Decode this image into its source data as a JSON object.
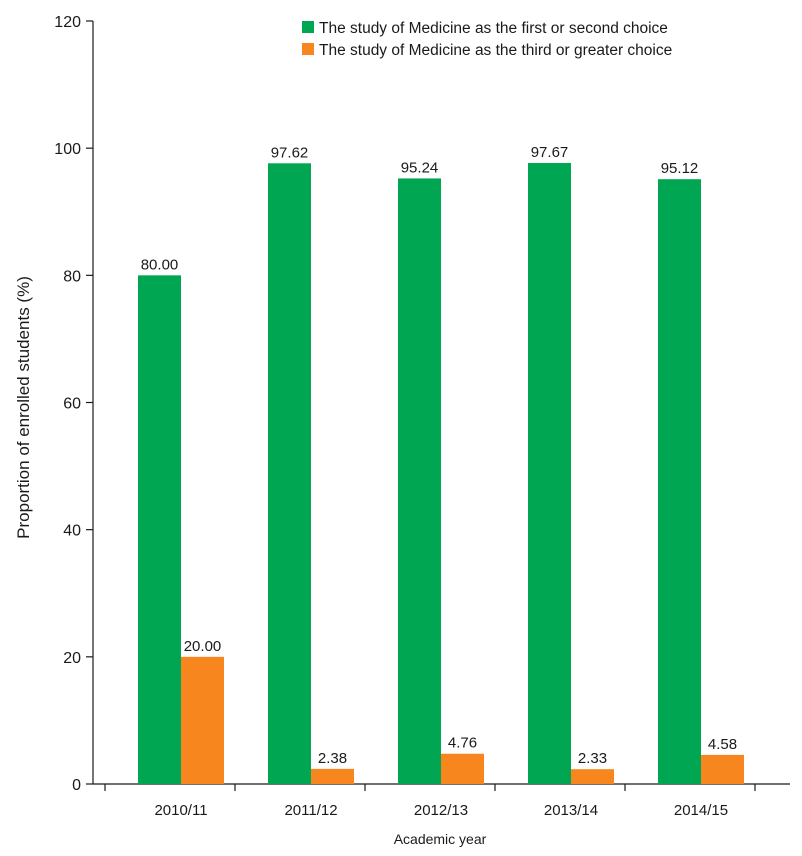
{
  "chart_data": {
    "type": "bar",
    "categories": [
      "2010/11",
      "2011/12",
      "2012/13",
      "2013/14",
      "2014/15"
    ],
    "series": [
      {
        "name": "The study of Medicine as the first or second choice",
        "values": [
          80.0,
          97.62,
          95.24,
          97.67,
          95.12
        ],
        "labels": [
          "80.00",
          "97.62",
          "95.24",
          "97.67",
          "95.12"
        ],
        "color": "#00a651"
      },
      {
        "name": "The study of Medicine as the third or greater choice",
        "values": [
          20.0,
          2.38,
          4.76,
          2.33,
          4.58
        ],
        "labels": [
          "20.00",
          "2.38",
          "4.76",
          "2.33",
          "4.58"
        ],
        "color": "#f7861f"
      }
    ],
    "xlabel": "Academic year",
    "ylabel": "Proportion of enrolled students (%)",
    "ylim": [
      0,
      120
    ],
    "yticks": [
      0,
      20,
      40,
      60,
      80,
      100,
      120
    ],
    "grid": false,
    "legend_position": "top-right"
  }
}
